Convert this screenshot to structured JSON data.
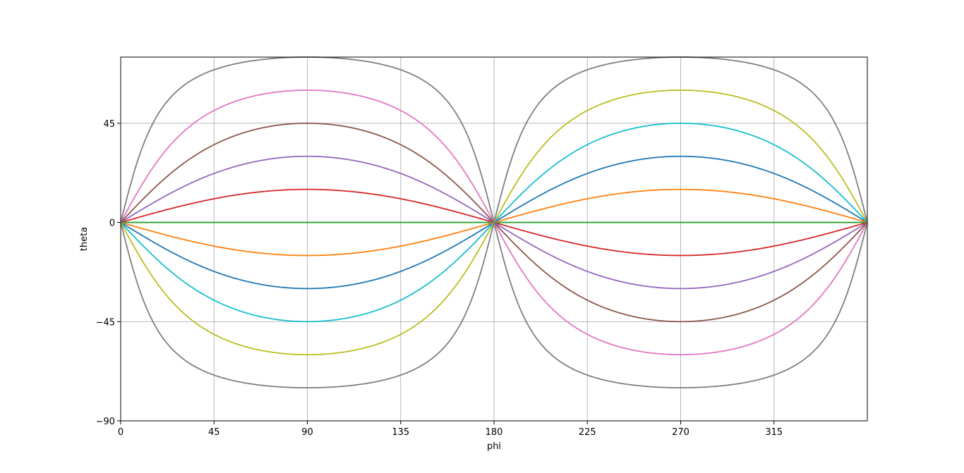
{
  "chart_data": {
    "type": "line",
    "title": "",
    "xlabel": "phi",
    "ylabel": "theta",
    "xlim": [
      0,
      360
    ],
    "ylim": [
      -90,
      75
    ],
    "xticks": [
      0,
      45,
      90,
      135,
      180,
      225,
      270,
      315
    ],
    "yticks": [
      -90,
      -45,
      0,
      45
    ],
    "xtick_labels": [
      "0",
      "45",
      "90",
      "135",
      "180",
      "225",
      "270",
      "315"
    ],
    "ytick_labels": [
      "−90",
      "−45",
      "0",
      "45"
    ],
    "grid": true,
    "legend": "none",
    "curve_family": "theta = atan(tan(alpha) * sin(phi)), alpha = peak of curve in degrees",
    "series": [
      {
        "alpha": 75,
        "color": "#7f7f7f"
      },
      {
        "alpha": 60,
        "color": "#e377c2"
      },
      {
        "alpha": 45,
        "color": "#8c564b"
      },
      {
        "alpha": 30,
        "color": "#9467bd"
      },
      {
        "alpha": 15,
        "color": "#d62728"
      },
      {
        "alpha": 0,
        "color": "#2ca02c"
      },
      {
        "alpha": -15,
        "color": "#ff7f0e"
      },
      {
        "alpha": -30,
        "color": "#1f77b4"
      },
      {
        "alpha": -45,
        "color": "#17becf"
      },
      {
        "alpha": -60,
        "color": "#bcbd22"
      },
      {
        "alpha": -75,
        "color": "#7f7f7f"
      }
    ]
  }
}
